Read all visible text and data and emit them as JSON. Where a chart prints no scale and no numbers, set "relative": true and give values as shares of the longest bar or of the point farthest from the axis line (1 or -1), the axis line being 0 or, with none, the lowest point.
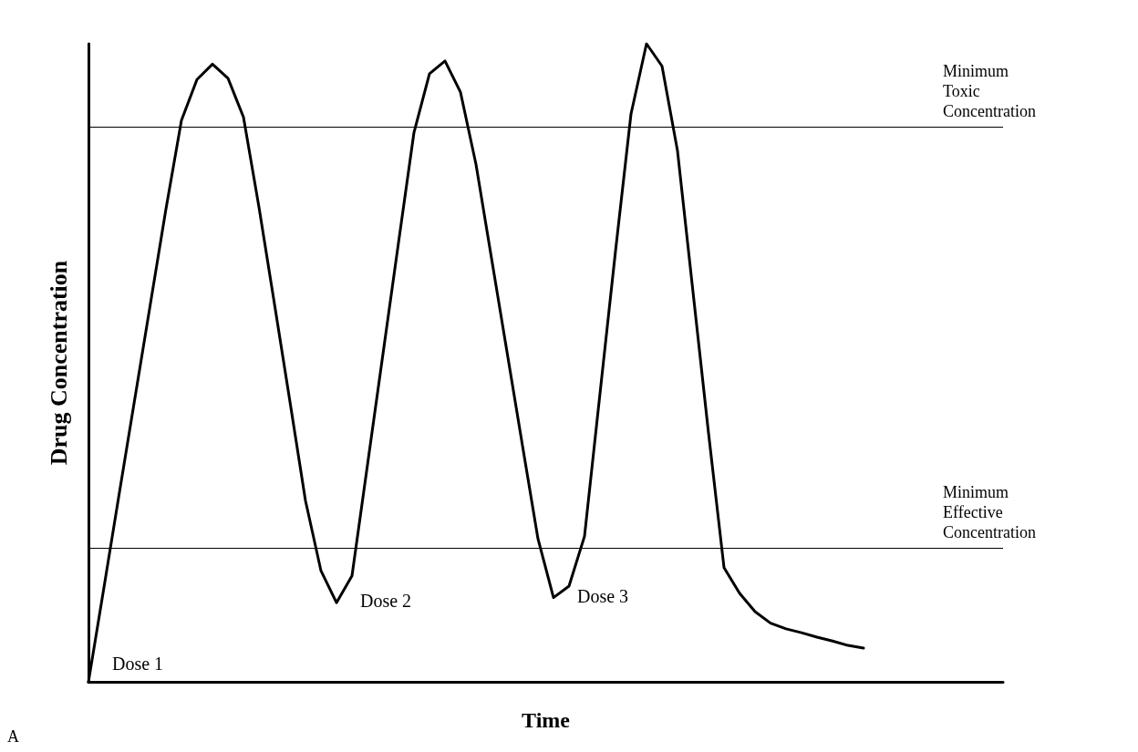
{
  "chart_data": {
    "type": "line",
    "relative": true,
    "xlabel": "Time",
    "ylabel": "Drug Concentration",
    "color": "#000000",
    "marker": "none",
    "line_style": "solid",
    "categories": [
      null,
      null,
      null,
      null,
      null,
      null,
      null,
      null,
      null,
      null,
      null,
      null,
      null,
      null,
      null,
      null,
      null,
      null,
      null,
      null,
      null,
      null,
      null,
      null,
      null,
      null,
      null,
      null,
      null,
      null,
      null,
      null,
      null,
      null,
      null,
      null,
      null,
      null,
      null,
      null,
      null,
      null,
      null,
      null,
      null,
      null,
      null,
      null,
      null,
      null,
      null,
      null,
      null,
      null,
      null,
      null,
      null,
      null,
      null,
      null
    ],
    "values": [
      0,
      0.148,
      0.297,
      0.445,
      0.593,
      0.741,
      0.88,
      0.944,
      0.968,
      0.946,
      0.885,
      0.744,
      0.592,
      0.439,
      0.284,
      0.174,
      0.124,
      0.166,
      0.34,
      0.514,
      0.688,
      0.861,
      0.953,
      0.973,
      0.924,
      0.811,
      0.664,
      0.517,
      0.37,
      0.224,
      0.132,
      0.15,
      0.228,
      0.452,
      0.675,
      0.89,
      1,
      0.965,
      0.832,
      0.611,
      0.39,
      0.179,
      0.139,
      0.11,
      0.092,
      0.083,
      0.077,
      0.07,
      0.064,
      0.057,
      0.053,
      null,
      null,
      null,
      null,
      null,
      null,
      null,
      null,
      null
    ],
    "ref_lines": [
      {
        "axis": "y",
        "value": 0.871,
        "label": "Minimum Toxic Concentration"
      },
      {
        "axis": "y",
        "value": 0.206,
        "label": "Minimum Effective Concentration"
      }
    ],
    "annotations": [
      "Dose 1",
      "Dose 2",
      "Dose 3",
      "A"
    ]
  }
}
